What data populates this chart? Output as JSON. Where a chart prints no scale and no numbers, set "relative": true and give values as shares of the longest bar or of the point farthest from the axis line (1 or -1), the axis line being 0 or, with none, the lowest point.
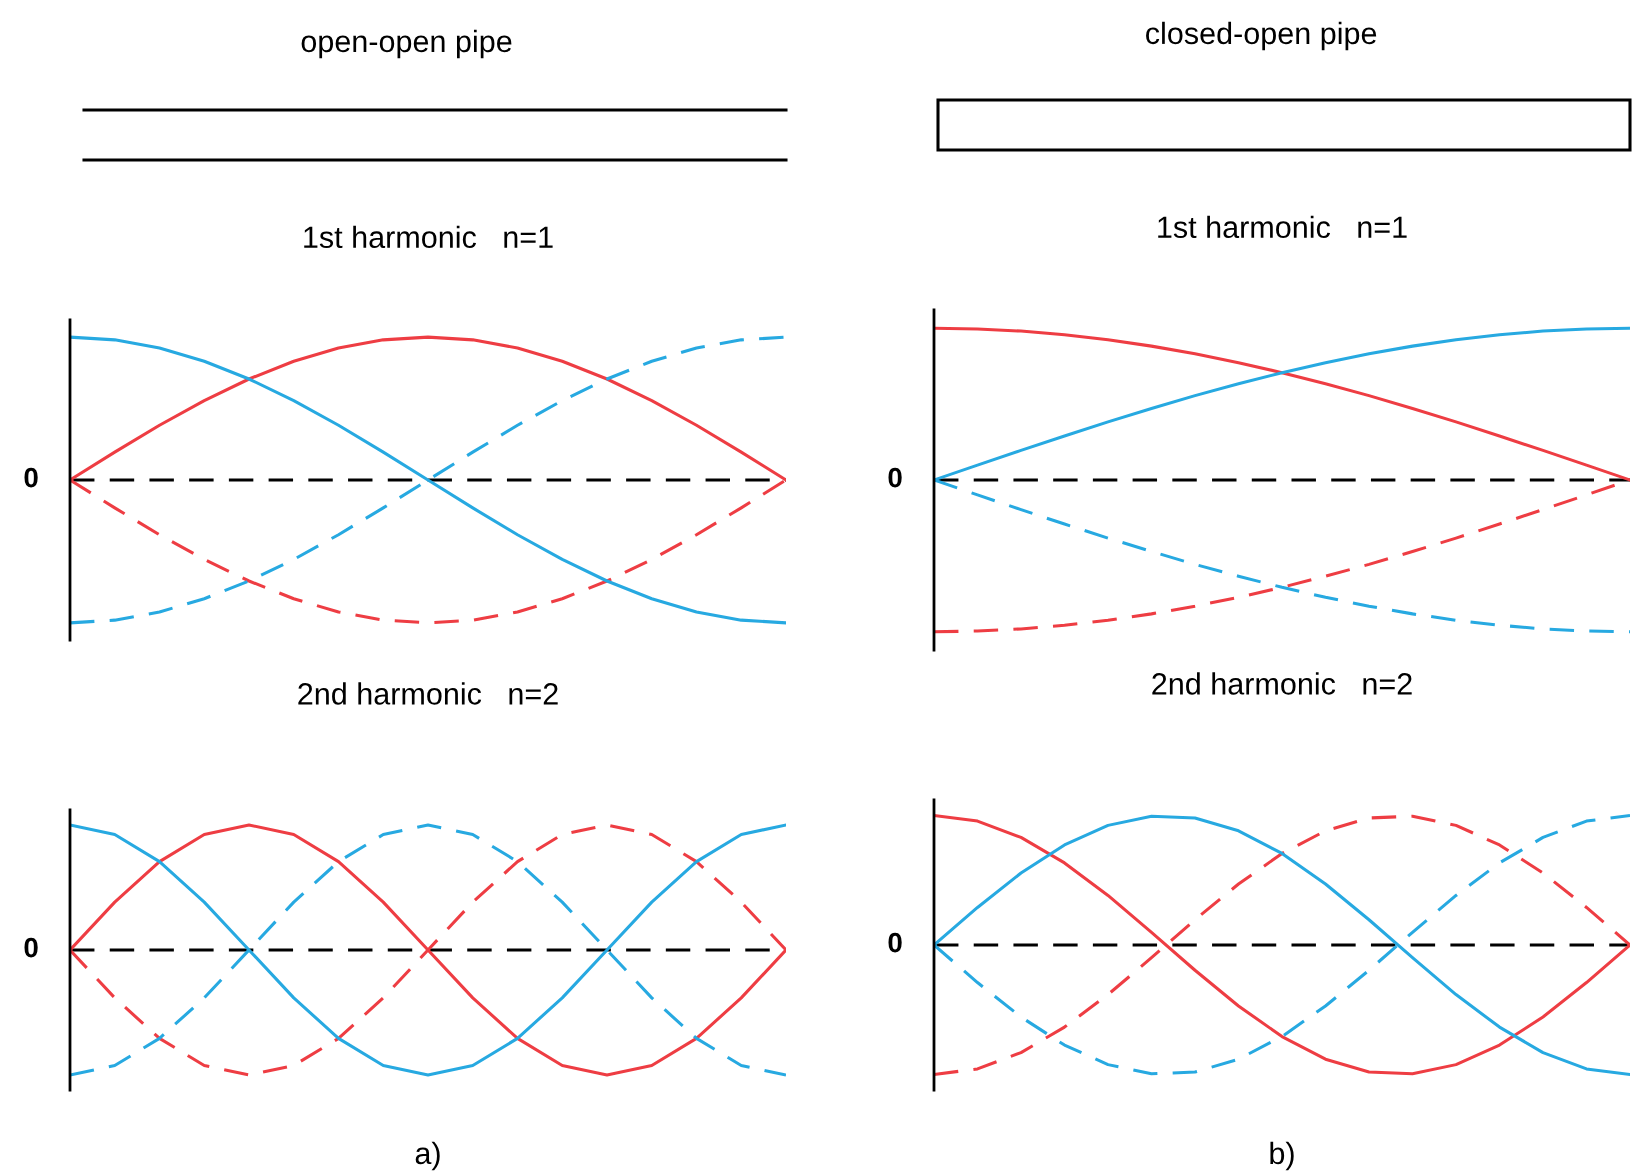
{
  "chart_data": [
    {
      "type": "line",
      "title": "1st harmonic   n=1",
      "annotations": [
        "open-open pipe"
      ],
      "relative": true,
      "categories": [
        null,
        null,
        null,
        null,
        null,
        null,
        null,
        null,
        null,
        null,
        null,
        null,
        null,
        null,
        null,
        null,
        null
      ],
      "ref_lines": [
        {
          "axis": "y",
          "value": 0,
          "label": "0",
          "color": "#000000",
          "line_style": "dashed"
        }
      ],
      "series": [
        {
          "color": "#ee3d43",
          "values": [
            0,
            0.195,
            0.383,
            0.556,
            0.707,
            0.831,
            0.924,
            0.981,
            1,
            0.981,
            0.924,
            0.831,
            0.707,
            0.556,
            0.383,
            0.195,
            0
          ]
        },
        {
          "color": "#ee3d43",
          "line_style": "dashed",
          "values": [
            0,
            -0.195,
            -0.383,
            -0.556,
            -0.707,
            -0.831,
            -0.924,
            -0.981,
            -1,
            -0.981,
            -0.924,
            -0.831,
            -0.707,
            -0.556,
            -0.383,
            -0.195,
            0
          ]
        },
        {
          "color": "#27a9e1",
          "values": [
            1,
            0.981,
            0.924,
            0.831,
            0.707,
            0.556,
            0.383,
            0.195,
            0,
            -0.195,
            -0.383,
            -0.556,
            -0.707,
            -0.831,
            -0.924,
            -0.981,
            -1
          ]
        },
        {
          "color": "#27a9e1",
          "line_style": "dashed",
          "values": [
            -1,
            -0.981,
            -0.924,
            -0.831,
            -0.707,
            -0.556,
            -0.383,
            -0.195,
            0,
            0.195,
            0.383,
            0.556,
            0.707,
            0.831,
            0.924,
            0.981,
            1
          ]
        }
      ]
    },
    {
      "type": "line",
      "title": "1st harmonic   n=1",
      "annotations": [
        "closed-open pipe"
      ],
      "relative": true,
      "categories": [
        null,
        null,
        null,
        null,
        null,
        null,
        null,
        null,
        null,
        null,
        null,
        null,
        null,
        null,
        null,
        null,
        null
      ],
      "ref_lines": [
        {
          "axis": "y",
          "value": 0,
          "label": "0",
          "color": "#000000",
          "line_style": "dashed"
        }
      ],
      "series": [
        {
          "color": "#ee3d43",
          "values": [
            1,
            0.995,
            0.981,
            0.957,
            0.924,
            0.882,
            0.831,
            0.773,
            0.707,
            0.634,
            0.556,
            0.471,
            0.383,
            0.29,
            0.195,
            0.098,
            0
          ]
        },
        {
          "color": "#ee3d43",
          "line_style": "dashed",
          "values": [
            -1,
            -0.995,
            -0.981,
            -0.957,
            -0.924,
            -0.882,
            -0.831,
            -0.773,
            -0.707,
            -0.634,
            -0.556,
            -0.471,
            -0.383,
            -0.29,
            -0.195,
            -0.098,
            0
          ]
        },
        {
          "color": "#27a9e1",
          "values": [
            0,
            0.098,
            0.195,
            0.29,
            0.383,
            0.471,
            0.556,
            0.634,
            0.707,
            0.773,
            0.831,
            0.882,
            0.924,
            0.957,
            0.981,
            0.995,
            1
          ]
        },
        {
          "color": "#27a9e1",
          "line_style": "dashed",
          "values": [
            0,
            -0.098,
            -0.195,
            -0.29,
            -0.383,
            -0.471,
            -0.556,
            -0.634,
            -0.707,
            -0.773,
            -0.831,
            -0.882,
            -0.924,
            -0.957,
            -0.981,
            -0.995,
            -1
          ]
        }
      ]
    },
    {
      "type": "line",
      "title": "2nd harmonic   n=2",
      "annotations": [
        "a)"
      ],
      "relative": true,
      "categories": [
        null,
        null,
        null,
        null,
        null,
        null,
        null,
        null,
        null,
        null,
        null,
        null,
        null,
        null,
        null,
        null,
        null
      ],
      "ref_lines": [
        {
          "axis": "y",
          "value": 0,
          "label": "0",
          "color": "#000000",
          "line_style": "dashed"
        }
      ],
      "series": [
        {
          "color": "#ee3d43",
          "values": [
            0,
            0.383,
            0.707,
            0.924,
            1,
            0.924,
            0.707,
            0.383,
            0,
            -0.383,
            -0.707,
            -0.924,
            -1,
            -0.924,
            -0.707,
            -0.383,
            0
          ]
        },
        {
          "color": "#ee3d43",
          "line_style": "dashed",
          "values": [
            0,
            -0.383,
            -0.707,
            -0.924,
            -1,
            -0.924,
            -0.707,
            -0.383,
            0,
            0.383,
            0.707,
            0.924,
            1,
            0.924,
            0.707,
            0.383,
            0
          ]
        },
        {
          "color": "#27a9e1",
          "values": [
            1,
            0.924,
            0.707,
            0.383,
            0,
            -0.383,
            -0.707,
            -0.924,
            -1,
            -0.924,
            -0.707,
            -0.383,
            0,
            0.383,
            0.707,
            0.924,
            1
          ]
        },
        {
          "color": "#27a9e1",
          "line_style": "dashed",
          "values": [
            -1,
            -0.924,
            -0.707,
            -0.383,
            0,
            0.383,
            0.707,
            0.924,
            1,
            0.924,
            0.707,
            0.383,
            0,
            -0.383,
            -0.707,
            -0.924,
            -1
          ]
        }
      ]
    },
    {
      "type": "line",
      "title": "2nd harmonic   n=2",
      "annotations": [
        "b)"
      ],
      "relative": true,
      "categories": [
        null,
        null,
        null,
        null,
        null,
        null,
        null,
        null,
        null,
        null,
        null,
        null,
        null,
        null,
        null,
        null,
        null
      ],
      "ref_lines": [
        {
          "axis": "y",
          "value": 0,
          "label": "0",
          "color": "#000000",
          "line_style": "dashed"
        }
      ],
      "series": [
        {
          "color": "#ee3d43",
          "values": [
            1,
            0.957,
            0.831,
            0.634,
            0.383,
            0.098,
            -0.195,
            -0.471,
            -0.707,
            -0.882,
            -0.981,
            -0.995,
            -0.924,
            -0.773,
            -0.556,
            -0.29,
            0
          ]
        },
        {
          "color": "#ee3d43",
          "line_style": "dashed",
          "values": [
            -1,
            -0.957,
            -0.831,
            -0.634,
            -0.383,
            -0.098,
            0.195,
            0.471,
            0.707,
            0.882,
            0.981,
            0.995,
            0.924,
            0.773,
            0.556,
            0.29,
            0
          ]
        },
        {
          "color": "#27a9e1",
          "values": [
            0,
            0.29,
            0.556,
            0.773,
            0.924,
            0.995,
            0.981,
            0.882,
            0.707,
            0.471,
            0.195,
            -0.098,
            -0.383,
            -0.634,
            -0.831,
            -0.957,
            -1
          ]
        },
        {
          "color": "#27a9e1",
          "line_style": "dashed",
          "values": [
            0,
            -0.29,
            -0.556,
            -0.773,
            -0.924,
            -0.995,
            -0.981,
            -0.882,
            -0.707,
            -0.471,
            -0.195,
            0.098,
            0.383,
            0.634,
            0.831,
            0.957,
            1
          ]
        }
      ]
    }
  ]
}
